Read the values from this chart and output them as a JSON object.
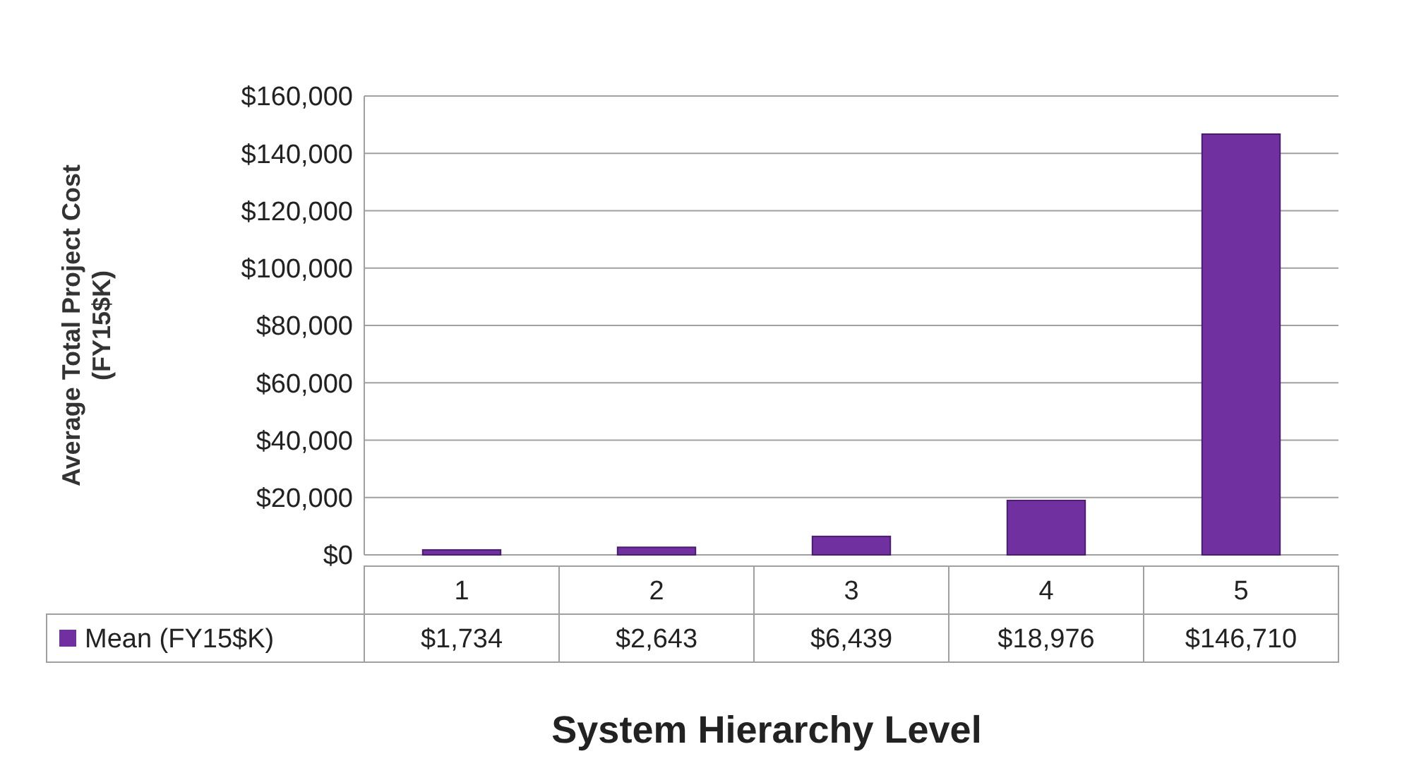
{
  "chart_data": {
    "type": "bar",
    "xlabel": "System Hierarchy Level",
    "ylabel": "Average Total Project Cost (FY15$K)",
    "categories": [
      "1",
      "2",
      "3",
      "4",
      "5"
    ],
    "series": [
      {
        "name": "Mean (FY15$K)",
        "color": "#7030a0",
        "values": [
          1734,
          2643,
          6439,
          18976,
          146710
        ],
        "value_labels": [
          "$1,734",
          "$2,643",
          "$6,439",
          "$18,976",
          "$146,710"
        ]
      }
    ],
    "ylim": [
      0,
      160000
    ],
    "yticks": [
      {
        "value": 0,
        "label": "$0"
      },
      {
        "value": 20000,
        "label": "$20,000"
      },
      {
        "value": 40000,
        "label": "$40,000"
      },
      {
        "value": 60000,
        "label": "$60,000"
      },
      {
        "value": 80000,
        "label": "$80,000"
      },
      {
        "value": 100000,
        "label": "$100,000"
      },
      {
        "value": 120000,
        "label": "$120,000"
      },
      {
        "value": 140000,
        "label": "$140,000"
      },
      {
        "value": 160000,
        "label": "$160,000"
      }
    ],
    "grid": true,
    "legend": "bottom"
  }
}
